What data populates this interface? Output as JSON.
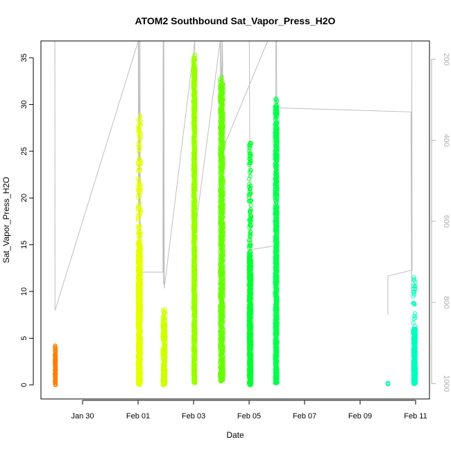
{
  "chart_data": {
    "type": "scatter",
    "title": "ATOM2 Southbound Sat_Vapor_Press_H2O",
    "xlabel": "Date",
    "ylabel": "Sat_Vapor_Press_H2O",
    "xlim": [
      "2017-01-28T12:00",
      "2017-02-11T12:00"
    ],
    "ylim": [
      -1.5,
      36.8
    ],
    "x_ticks": [
      "Jan 30",
      "Feb 01",
      "Feb 03",
      "Feb 05",
      "Feb 07",
      "Feb 09",
      "Feb 11"
    ],
    "y_ticks": [
      0,
      5,
      10,
      15,
      20,
      25,
      30,
      35
    ],
    "y2_ticks": [
      200,
      400,
      600,
      800,
      1000
    ],
    "y2lim": [
      1038,
      155
    ],
    "grid": false,
    "legend": "none",
    "colors": {
      "orange": "#ff7f00",
      "yellow": "#e3ff00",
      "yellow_green": "#ccff00",
      "green_yellow": "#99ff00",
      "bright_green": "#66ff00",
      "green": "#33ff00",
      "vivid_green": "#00ff33",
      "spring_green": "#00ff4c",
      "cyan_green": "#00ffaa",
      "aqua": "#00ffbf",
      "gray_line": "#bebebe"
    },
    "series": [
      {
        "color": "orange",
        "x_start": "2017-01-29T00:05",
        "x_end": "2017-01-29T00:45",
        "y_min": 0.0,
        "y_max": 4.2,
        "y_dense": 4.0
      },
      {
        "color": "yellow",
        "x_start": "2017-01-31T23:45",
        "x_end": "2017-02-01T02:30",
        "y_min": 0.0,
        "y_max": 28.8,
        "y_dense": 15.0
      },
      {
        "color": "yellow_green",
        "x_start": "2017-02-01T21:15",
        "x_end": "2017-02-01T23:45",
        "y_min": 0.0,
        "y_max": 8.1,
        "y_dense": 7.0
      },
      {
        "color": "green_yellow",
        "x_start": "2017-02-02T23:45",
        "x_end": "2017-02-03T01:30",
        "y_min": 0.2,
        "y_max": 35.3,
        "y_dense": 34.8
      },
      {
        "color": "bright_green",
        "x_start": "2017-02-03T22:50",
        "x_end": "2017-02-04T01:40",
        "y_min": 0.4,
        "y_max": 33.0,
        "y_dense": 32.6
      },
      {
        "color": "vivid_green",
        "x_start": "2017-02-04T23:50",
        "x_end": "2017-02-05T01:55",
        "y_min": 0.0,
        "y_max": 25.9,
        "y_dense": 14.0
      },
      {
        "color": "spring_green",
        "x_start": "2017-02-05T22:25",
        "x_end": "2017-02-06T00:25",
        "y_min": 0.2,
        "y_max": 30.6,
        "y_dense": 29.8
      },
      {
        "color": "cyan_green",
        "x_start": "2017-02-10T00:00",
        "x_end": "2017-02-10T00:00",
        "y_min": 0.1,
        "y_max": 0.2,
        "y_dense": 0.2
      },
      {
        "color": "aqua",
        "x_start": "2017-02-10T21:50",
        "x_end": "2017-02-11T00:10",
        "y_min": 0.1,
        "y_max": 11.5,
        "y_dense": 6.0
      }
    ],
    "secondary_line": {
      "color": "gray_line",
      "y2_unit": "hPa",
      "points": [
        [
          "2017-01-29T00:00",
          155
        ],
        [
          "2017-01-29T00:00",
          215
        ],
        [
          "2017-01-29T00:05",
          155
        ],
        [
          "2017-01-29T00:10",
          820
        ],
        [
          "2017-02-01T00:10",
          155
        ],
        [
          "2017-02-01T00:25",
          580
        ],
        [
          "2017-02-01T00:45",
          155
        ],
        [
          "2017-02-01T01:10",
          760
        ],
        [
          "2017-02-01T01:40",
          155
        ],
        [
          "2017-02-01T02:00",
          725
        ],
        [
          "2017-02-01T21:30",
          725
        ],
        [
          "2017-02-01T21:40",
          155
        ],
        [
          "2017-02-01T22:00",
          755
        ],
        [
          "2017-02-01T22:20",
          155
        ],
        [
          "2017-02-01T22:40",
          765
        ],
        [
          "2017-02-03T01:00",
          155
        ],
        [
          "2017-02-03T01:10",
          630
        ],
        [
          "2017-02-03T23:00",
          155
        ],
        [
          "2017-02-03T23:30",
          470
        ],
        [
          "2017-02-04T00:00",
          155
        ],
        [
          "2017-02-04T00:30",
          330
        ],
        [
          "2017-02-04T01:00",
          155
        ],
        [
          "2017-02-04T01:30",
          420
        ],
        [
          "2017-02-05T16:00",
          155
        ],
        [
          "2017-02-05T00:10",
          155
        ],
        [
          "2017-02-05T00:30",
          330
        ],
        [
          "2017-02-05T00:40",
          670
        ],
        [
          "2017-02-05T23:00",
          660
        ],
        [
          "2017-02-05T23:10",
          155
        ],
        [
          "2017-02-05T23:40",
          155
        ],
        [
          "2017-02-06T00:00",
          320
        ],
        [
          "2017-02-10T20:00",
          330
        ],
        [
          "2017-02-10T20:30",
          775
        ],
        [
          "2017-02-10T20:40",
          155
        ],
        [
          "2017-02-10T21:00",
          720
        ],
        [
          "2017-02-10T00:00",
          735
        ],
        [
          "2017-02-10T00:00",
          830
        ]
      ]
    }
  }
}
